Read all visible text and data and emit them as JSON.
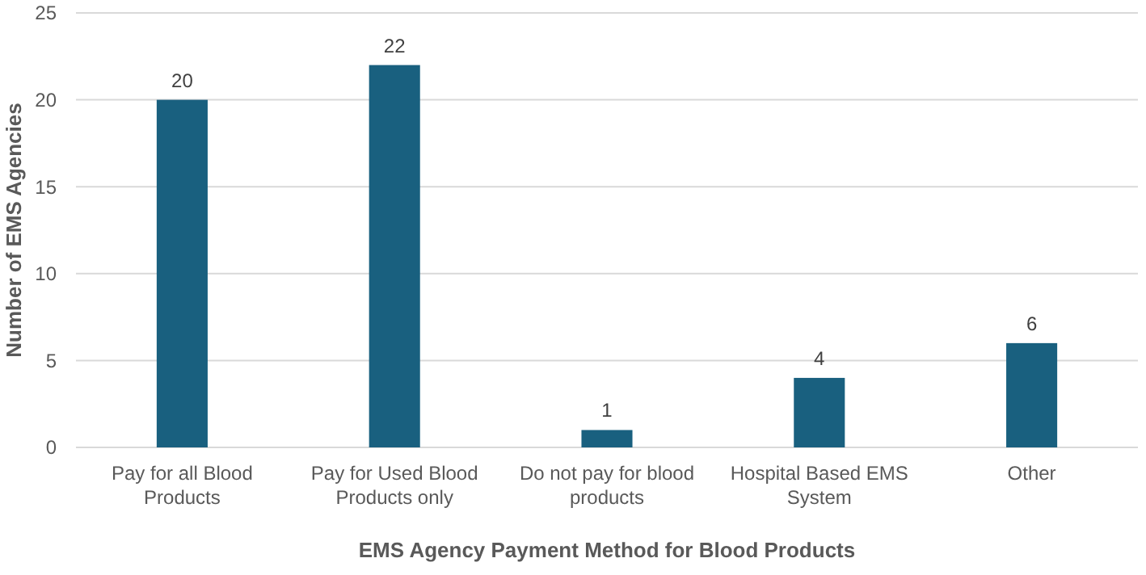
{
  "chart_data": {
    "type": "bar",
    "xlabel": "EMS Agency Payment Method for Blood Products",
    "ylabel": "Number of EMS Agencies",
    "categories": [
      "Pay for all Blood Products",
      "Pay for Used Blood Products only",
      "Do not pay for blood products",
      "Hospital Based EMS System",
      "Other"
    ],
    "values": [
      20,
      22,
      1,
      4,
      6
    ],
    "color": "#19607f",
    "ylim": [
      0,
      25
    ],
    "yticks": [
      0,
      5,
      10,
      15,
      20,
      25
    ],
    "grid": "y",
    "data_labels": true
  }
}
